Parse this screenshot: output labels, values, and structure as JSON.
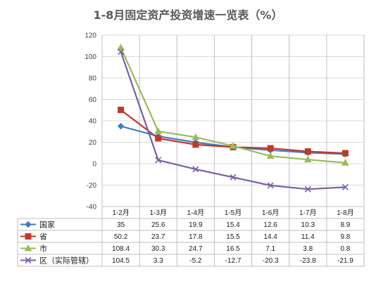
{
  "chart_data": {
    "type": "line",
    "title": "1-8月固定资产投资增速一览表（%）",
    "categories": [
      "1-2月",
      "1-3月",
      "1-4月",
      "1-5月",
      "1-6月",
      "1-7月",
      "1-8月"
    ],
    "ylim": [
      -40,
      120
    ],
    "yticks": [
      -40,
      -20,
      0,
      20,
      40,
      60,
      80,
      100,
      120
    ],
    "ytick_labels": [
      "-40",
      "-20",
      "0",
      "20",
      "40",
      "60",
      "80",
      "100",
      "120"
    ],
    "grid": true,
    "legend": "data-table",
    "series": [
      {
        "name": "国家",
        "color": "#3b7dc4",
        "marker": "diamond",
        "values": [
          35,
          25.6,
          19.9,
          15.4,
          12.6,
          10.3,
          8.9
        ],
        "labels": [
          "35",
          "25.6",
          "19.9",
          "15.4",
          "12.6",
          "10.3",
          "8.9"
        ]
      },
      {
        "name": "省",
        "color": "#c0392b",
        "marker": "square",
        "values": [
          50.2,
          23.7,
          17.8,
          15.5,
          14.4,
          11.4,
          9.8
        ],
        "labels": [
          "50.2",
          "23.7",
          "17.8",
          "15.5",
          "14.4",
          "11.4",
          "9.8"
        ]
      },
      {
        "name": "市",
        "color": "#9bbb59",
        "marker": "triangle",
        "values": [
          108.4,
          30.3,
          24.7,
          16.5,
          7.1,
          3.8,
          0.8
        ],
        "labels": [
          "108.4",
          "30.3",
          "24.7",
          "16.5",
          "7.1",
          "3.8",
          "0.8"
        ]
      },
      {
        "name": "区（实际管辖）",
        "color": "#7a5ea6",
        "marker": "x",
        "values": [
          104.5,
          3.3,
          -5.2,
          -12.7,
          -20.3,
          -23.8,
          -21.9
        ],
        "labels": [
          "104.5",
          "3.3",
          "-5.2",
          "-12.7",
          "-20.3",
          "-23.8",
          "-21.9"
        ]
      }
    ]
  }
}
